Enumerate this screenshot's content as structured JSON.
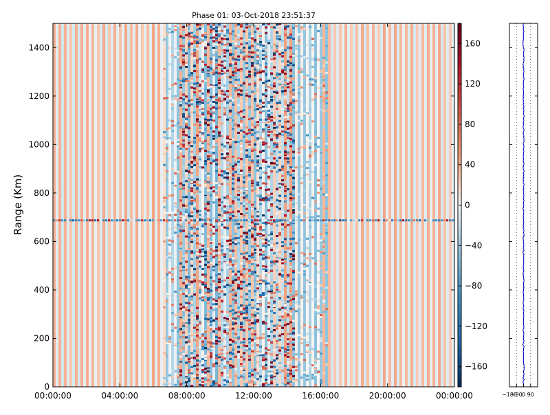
{
  "chart_data": [
    {
      "type": "heatmap",
      "title": "Phase 01: 03-Oct-2018 23:51:37",
      "ylabel": "Range (Km)",
      "xlabel": "",
      "x_ticks": [
        "00:00:00",
        "04:00:00",
        "08:00:00",
        "12:00:00",
        "16:00:00",
        "20:00:00",
        "00:00:00"
      ],
      "x_range_hours": [
        0,
        24
      ],
      "y_ticks": [
        0,
        200,
        400,
        600,
        800,
        1000,
        1200,
        1400
      ],
      "ylim": [
        0,
        1500
      ],
      "colormap": "RdBu_r",
      "colorbar": {
        "range": [
          -180,
          180
        ],
        "ticks": [
          "160",
          "120",
          "80",
          "40",
          "0",
          "−40",
          "−80",
          "−120",
          "−160"
        ],
        "tick_values": [
          160,
          120,
          80,
          40,
          0,
          -40,
          -80,
          -120,
          -160
        ]
      },
      "active_band_hours": [
        6.5,
        16.5
      ],
      "strong_band_hours": [
        7.5,
        14.5
      ],
      "interference_row_km": 687,
      "grid": false
    },
    {
      "type": "line",
      "description_series": "phase profile",
      "x_ticks": [
        "−180",
        "−90",
        "0",
        "90"
      ],
      "x_tick_values": [
        -180,
        -90,
        0,
        90
      ],
      "xlim": [
        -180,
        180
      ],
      "ylim": [
        0,
        1500
      ],
      "line_color": "#0000cc",
      "mean_x": 0,
      "grid": "dotted-vertical"
    }
  ]
}
